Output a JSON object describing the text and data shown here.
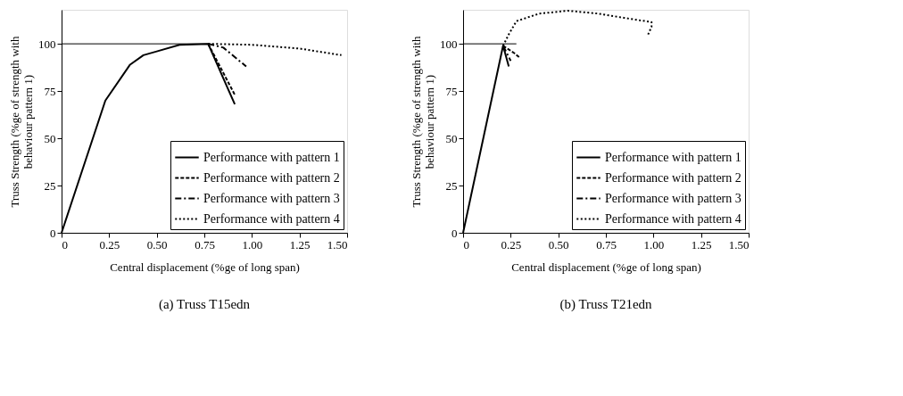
{
  "chart_data": [
    {
      "type": "line",
      "title": "(a) Truss T15edn",
      "xlabel": "Central displacement (%ge of long span)",
      "ylabel": "Truss Strength (%ge of strength with behaviour pattern 1)",
      "xlim": [
        0,
        1.5
      ],
      "ylim": [
        0,
        118
      ],
      "xticks": [
        0,
        0.25,
        {
          "value": 0.5,
          "label": "0.50"
        },
        0.75,
        {
          "value": 1.0,
          "label": "1.00"
        },
        1.25,
        {
          "value": 1.5,
          "label": "1.50"
        }
      ],
      "yticks": [
        0,
        25,
        50,
        75,
        100
      ],
      "grid": false,
      "legend": "bottom right",
      "series": [
        {
          "x": [
            0,
            0.78
          ],
          "values": [
            100,
            100
          ],
          "color": "#000000",
          "line_style": "solid"
        },
        {
          "name": "Performance with pattern 1",
          "color": "#000000",
          "line_style": "solid",
          "x": [
            0,
            0.23,
            0.36,
            0.43,
            0.5,
            0.62,
            0.77,
            0.91
          ],
          "values": [
            0,
            70,
            89,
            94,
            96,
            99.5,
            100,
            68
          ]
        },
        {
          "name": "Performance with pattern 2",
          "color": "#000000",
          "line_style": "dashed",
          "x": [
            0.77,
            0.91
          ],
          "values": [
            100,
            73
          ]
        },
        {
          "name": "Performance with pattern 3",
          "color": "#000000",
          "line_style": "dashdot",
          "x": [
            0.77,
            0.85,
            0.97
          ],
          "values": [
            100,
            98,
            88
          ]
        },
        {
          "name": "Performance with pattern 4",
          "color": "#000000",
          "line_style": "dotted",
          "x": [
            0.77,
            1.0,
            1.25,
            1.47
          ],
          "values": [
            100,
            99.5,
            97.5,
            94
          ]
        }
      ]
    },
    {
      "type": "line",
      "title": "(b) Truss T21edn",
      "xlabel": "Central displacement (%ge of long span)",
      "ylabel": "Truss Strength (%ge of strength with behaviour pattern 1)",
      "xlim": [
        0,
        1.5
      ],
      "ylim": [
        0,
        118
      ],
      "xticks": [
        0,
        0.25,
        {
          "value": 0.5,
          "label": "0.50"
        },
        0.75,
        {
          "value": 1.0,
          "label": "1.00"
        },
        1.25,
        {
          "value": 1.5,
          "label": "1.50"
        }
      ],
      "yticks": [
        0,
        25,
        50,
        75,
        100
      ],
      "grid": false,
      "legend": "bottom right",
      "series": [
        {
          "x": [
            0,
            0.28
          ],
          "values": [
            100,
            100
          ],
          "color": "#000000",
          "line_style": "solid"
        },
        {
          "name": "Performance with pattern 1",
          "color": "#000000",
          "line_style": "solid",
          "x": [
            0,
            0.21,
            0.24
          ],
          "values": [
            0,
            99,
            88
          ]
        },
        {
          "name": "Performance with pattern 2",
          "color": "#000000",
          "line_style": "dashed",
          "x": [
            0.21,
            0.27,
            0.3
          ],
          "values": [
            99,
            95,
            92.5
          ]
        },
        {
          "name": "Performance with pattern 3",
          "color": "#000000",
          "line_style": "dashdot",
          "x": [
            0.21,
            0.25
          ],
          "values": [
            99,
            91
          ]
        },
        {
          "name": "Performance with pattern 4",
          "color": "#000000",
          "line_style": "dotted",
          "x": [
            0.21,
            0.24,
            0.28,
            0.4,
            0.55,
            0.71,
            0.86,
            0.99,
            0.99,
            0.97
          ],
          "values": [
            99,
            105,
            112,
            116,
            117.5,
            116,
            113.5,
            111.5,
            109,
            104.5
          ]
        }
      ]
    }
  ]
}
